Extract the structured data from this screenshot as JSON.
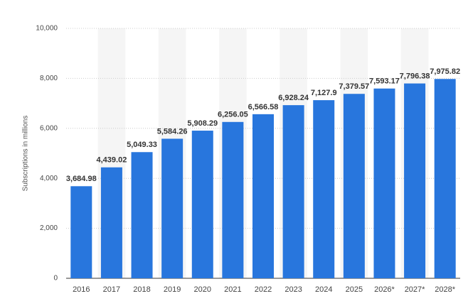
{
  "chart_data": {
    "type": "bar",
    "y_label": "Subscriptions in millions",
    "categories": [
      "2016",
      "2017",
      "2018",
      "2019",
      "2020",
      "2021",
      "2022",
      "2023",
      "2024",
      "2025",
      "2026*",
      "2027*",
      "2028*"
    ],
    "values": [
      3684.98,
      4439.02,
      5049.33,
      5584.26,
      5908.29,
      6256.05,
      6566.58,
      6928.24,
      7127.9,
      7379.57,
      7593.17,
      7796.38,
      7975.82
    ],
    "value_labels": [
      "3,684.98",
      "4,439.02",
      "5,049.33",
      "5,584.26",
      "5,908.29",
      "6,256.05",
      "6,566.58",
      "6,928.24",
      "7,127.9",
      "7,379.57",
      "7,593.17",
      "7,796.38",
      "7,975.82"
    ],
    "color": "#2876dd",
    "ylim": [
      0,
      10000
    ],
    "yticks": [
      0,
      {
        "value": 2000,
        "label": "2,000"
      },
      {
        "value": 4000,
        "label": "4,000"
      },
      {
        "value": 6000,
        "label": "6,000"
      },
      {
        "value": 8000,
        "label": "8,000"
      },
      {
        "value": 10000,
        "label": "10,000"
      }
    ],
    "grid": true
  }
}
